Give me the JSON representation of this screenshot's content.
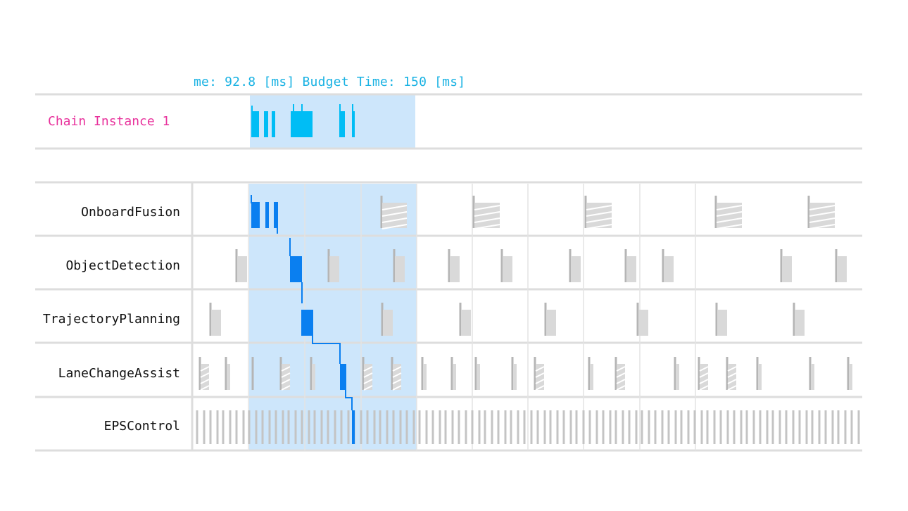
{
  "header": {
    "text": "me: 92.8 [ms] Budget Time: 150 [ms]"
  },
  "chain": {
    "label": "Chain Instance 1"
  },
  "rows": [
    {
      "label": "OnboardFusion"
    },
    {
      "label": "ObjectDetection"
    },
    {
      "label": "TrajectoryPlanning"
    },
    {
      "label": "LaneChangeAssist"
    },
    {
      "label": "EPSControl"
    }
  ],
  "colors": {
    "highlight": "#cde6fb",
    "active": "#0a7ff0",
    "chain_block": "#00bdf5",
    "inactive": "#d9d9d9",
    "inactive_edge": "#b5b5b5",
    "grid": "#dddddd",
    "title": "#19b2e3",
    "chain_label": "#e8329c"
  }
}
